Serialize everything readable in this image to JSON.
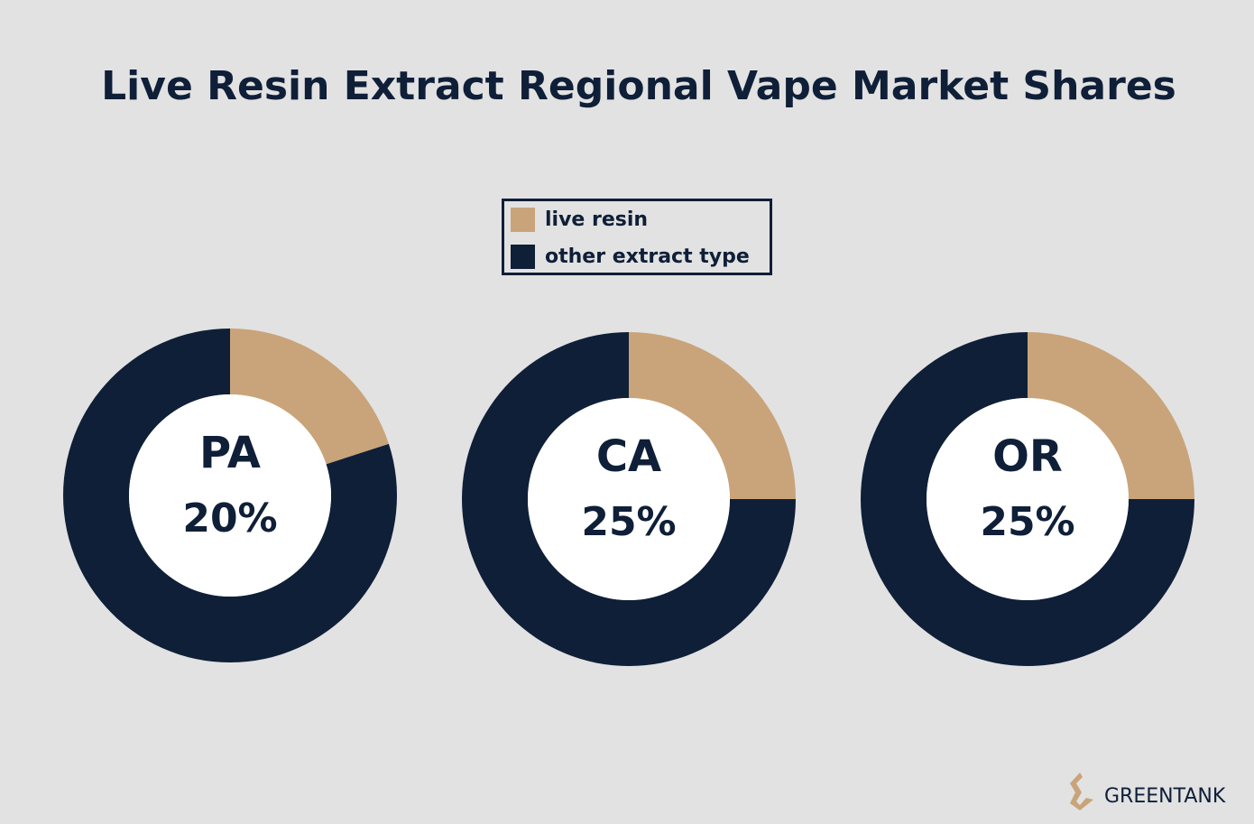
{
  "title": "Live Resin Extract Regional Vape Market Shares",
  "legend": {
    "names": [
      "live resin",
      "other extract type"
    ],
    "colors": [
      "#c9a47a",
      "#0f1f38"
    ]
  },
  "logo": "GREENTANK",
  "chart_data": [
    {
      "type": "pie",
      "donut": true,
      "label": "PA",
      "values": [
        20,
        80
      ],
      "value_labels": [
        "20%",
        null
      ]
    },
    {
      "type": "pie",
      "donut": true,
      "label": "CA",
      "values": [
        25,
        75
      ],
      "value_labels": [
        "25%",
        null
      ]
    },
    {
      "type": "pie",
      "donut": true,
      "label": "OR",
      "values": [
        25,
        75
      ],
      "value_labels": [
        "25%",
        null
      ]
    }
  ]
}
